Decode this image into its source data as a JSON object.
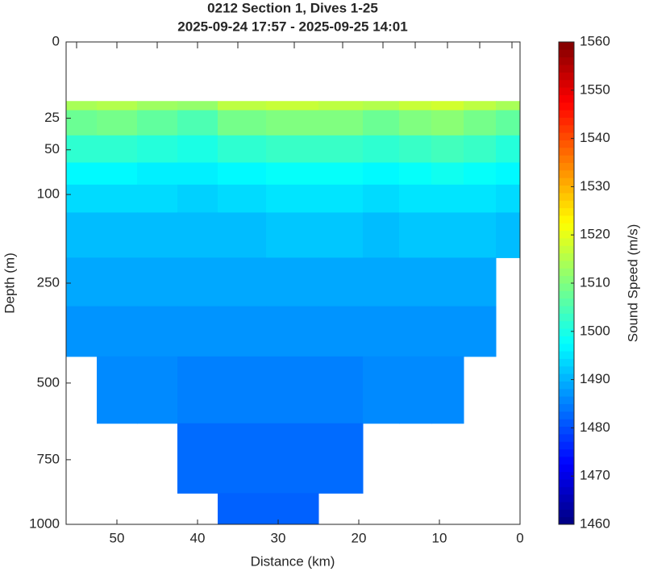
{
  "chart_data": {
    "type": "section",
    "title": "0212 Section 1, Dives 1-25",
    "subtitle": "2025-09-24 17:57 - 2025-09-25 14:01",
    "x_label": "Distance (km)",
    "y_label": "Depth (m)",
    "colorbar_label": "Sound Speed (m/s)",
    "x": [
      55,
      50,
      45,
      40,
      35,
      28,
      22,
      17,
      13,
      9,
      5,
      1
    ],
    "y": [
      15,
      25,
      50,
      75,
      100,
      150,
      250,
      350,
      500,
      750,
      1000
    ],
    "values": [
      [
        1514,
        1515,
        1513,
        1512,
        1516,
        1517,
        1516,
        1515,
        1517,
        1518,
        1516,
        1514
      ],
      [
        1508,
        1509,
        1507,
        1505,
        1509,
        1510,
        1510,
        1508,
        1510,
        1511,
        1509,
        1507
      ],
      [
        1502,
        1502,
        1501,
        1500,
        1502,
        1503,
        1503,
        1502,
        1503,
        1504,
        1503,
        1501
      ],
      [
        1497,
        1497,
        1496,
        1496,
        1497,
        1498,
        1498,
        1497,
        1498,
        1499,
        1498,
        1497
      ],
      [
        1494,
        1494,
        1494,
        1493,
        1494,
        1495,
        1495,
        1494,
        1495,
        1495,
        1495,
        1494
      ],
      [
        1491,
        1491,
        1491,
        1491,
        1491,
        1492,
        1492,
        1491,
        1492,
        1492,
        1492,
        1491
      ],
      [
        1489,
        1489,
        1489,
        1489,
        1489,
        1489,
        1489,
        1489,
        1489,
        1489,
        1489,
        null
      ],
      [
        1487,
        1487,
        1487,
        1487,
        1487,
        1487,
        1487,
        1487,
        1487,
        1487,
        1487,
        null
      ],
      [
        null,
        1486,
        1486,
        1485,
        1485,
        1485,
        1485,
        1486,
        1486,
        1486,
        null,
        null
      ],
      [
        null,
        null,
        null,
        1483,
        1483,
        1483,
        1483,
        null,
        null,
        null,
        null,
        null
      ],
      [
        null,
        null,
        null,
        null,
        1482,
        1482,
        null,
        null,
        null,
        null,
        null,
        null
      ]
    ],
    "xlim": [
      56.3,
      0
    ],
    "xticks": [
      50,
      40,
      30,
      20,
      10,
      0
    ],
    "ylim": [
      0,
      1000
    ],
    "yscale": "sqrt",
    "yticks": [
      0,
      25,
      50,
      100,
      250,
      500,
      750,
      1000
    ],
    "clim": [
      1460,
      1560
    ],
    "cticks": [
      1460,
      1470,
      1480,
      1490,
      1500,
      1510,
      1520,
      1530,
      1540,
      1550,
      1560
    ],
    "colormap": "jet"
  }
}
